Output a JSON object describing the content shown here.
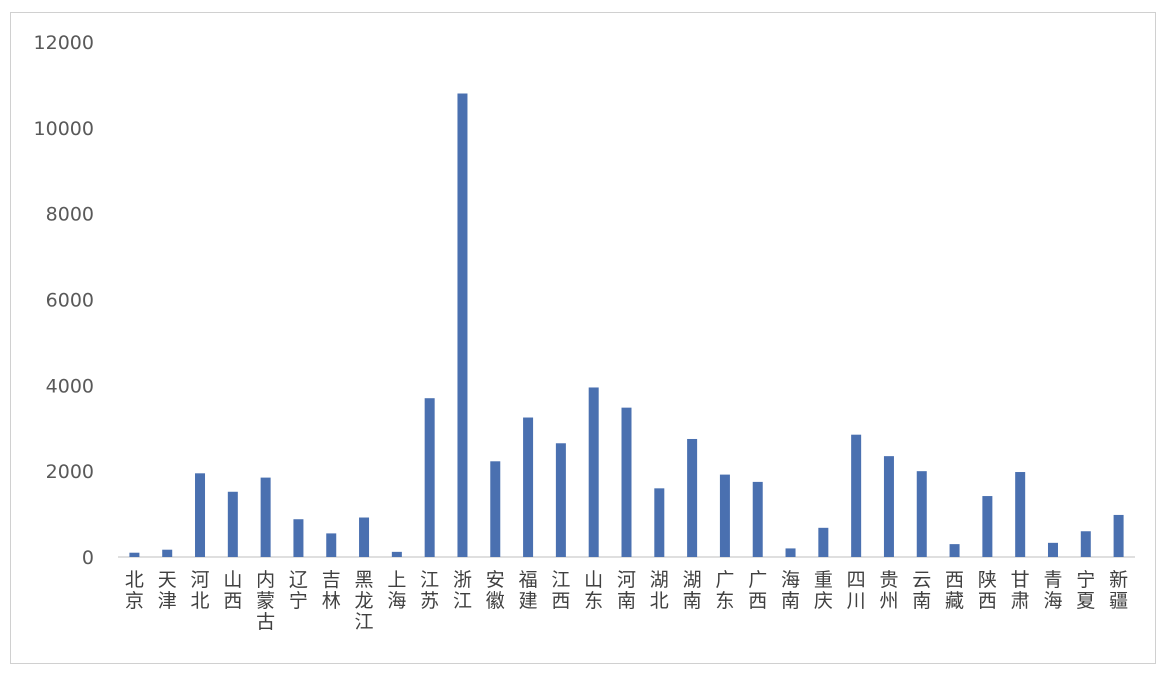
{
  "chart_data": {
    "type": "bar",
    "title": "",
    "xlabel": "",
    "ylabel": "",
    "ylim": [
      0,
      12000
    ],
    "yticks": [
      0,
      2000,
      4000,
      6000,
      8000,
      10000,
      12000
    ],
    "grid": false,
    "legend": "none",
    "bar_color": "#4a70b0",
    "categories": [
      "北京",
      "天津",
      "河北",
      "山西",
      "内蒙古",
      "辽宁",
      "吉林",
      "黑龙江",
      "上海",
      "江苏",
      "浙江",
      "安徽",
      "福建",
      "江西",
      "山东",
      "河南",
      "湖北",
      "湖南",
      "广东",
      "广西",
      "海南",
      "重庆",
      "四川",
      "贵州",
      "云南",
      "西藏",
      "陕西",
      "甘肃",
      "青海",
      "宁夏",
      "新疆"
    ],
    "values": [
      100,
      170,
      1950,
      1520,
      1850,
      880,
      550,
      920,
      120,
      3700,
      10800,
      2230,
      3250,
      2650,
      3950,
      3480,
      1600,
      2750,
      1920,
      1750,
      200,
      680,
      2850,
      2350,
      2000,
      300,
      1420,
      1980,
      330,
      600,
      980
    ]
  }
}
